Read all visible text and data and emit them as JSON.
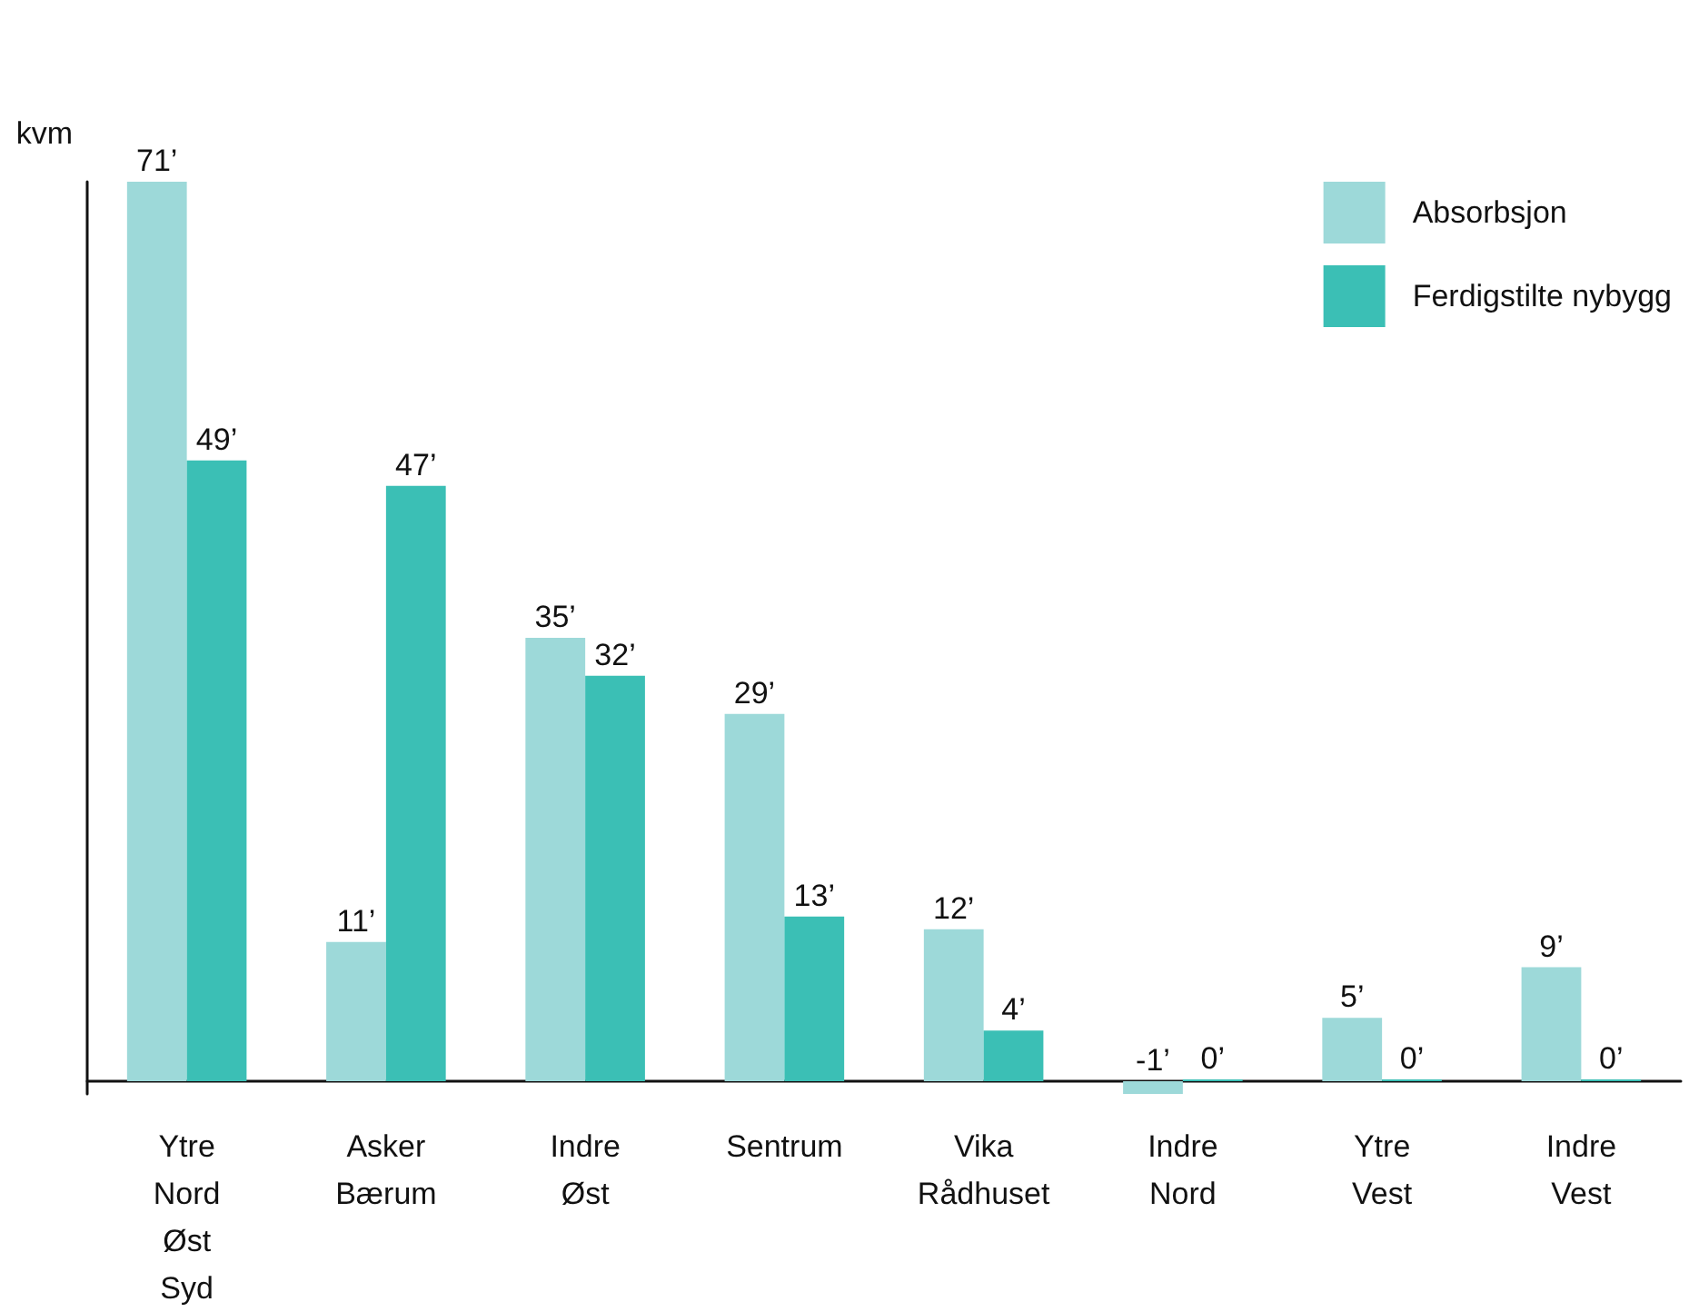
{
  "chart_data": {
    "type": "bar",
    "ylabel": "kvm",
    "categories": [
      "Ytre\nNord\nØst\nSyd",
      "Asker\nBærum",
      "Indre\nØst",
      "Sentrum",
      "Vika\nRådhuset",
      "Indre\nNord",
      "Ytre\nVest",
      "Indre\nVest"
    ],
    "series": [
      {
        "name": "Absorbsjon",
        "color": "#9dd9d9",
        "values": [
          71,
          11,
          35,
          29,
          12,
          -1,
          5,
          9
        ],
        "value_labels": [
          "71’",
          "11’",
          "35’",
          "29’",
          "12’",
          "-1’",
          "5’",
          "9’"
        ]
      },
      {
        "name": "Ferdigstilte nybygg",
        "color": "#3bbfb5",
        "values": [
          49,
          47,
          32,
          13,
          4,
          0,
          0,
          0
        ],
        "value_labels": [
          "49’",
          "47’",
          "32’",
          "13’",
          "4’",
          "0’",
          "0’",
          "0’"
        ]
      }
    ],
    "tick_labels": "x",
    "grid": false,
    "legend": "top right"
  }
}
